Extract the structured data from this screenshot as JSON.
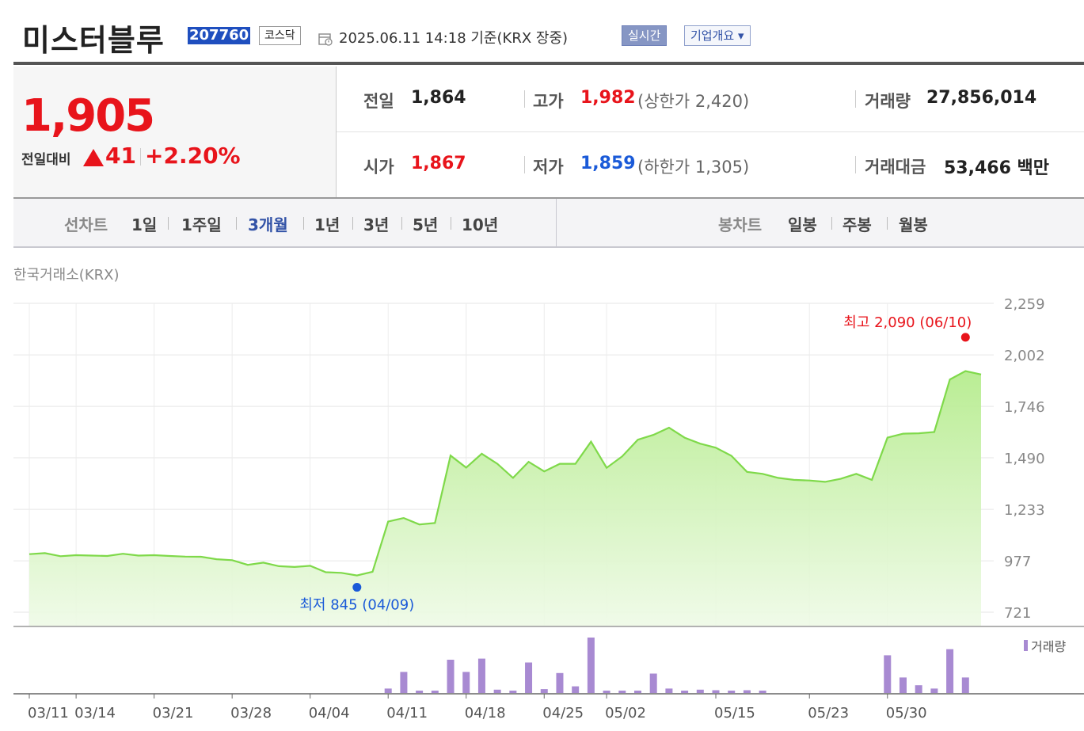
{
  "header": {
    "stock_name": "미스터블루",
    "stock_code": "207760",
    "market": "코스닥",
    "date_text": "2025.06.11 14:18 기준(KRX 장중)",
    "realtime_label": "실시간",
    "overview_label": "기업개요 ▾"
  },
  "quote": {
    "price": "1,905",
    "change_label": "전일대비",
    "change_amount": "41",
    "change_percent": "+2.20%",
    "direction": "up"
  },
  "stats": {
    "prev_close_label": "전일",
    "prev_close": "1,864",
    "high_label": "고가",
    "high": "1,982",
    "upper_limit_text": "(상한가 2,420)",
    "volume_label": "거래량",
    "volume": "27,856,014",
    "open_label": "시가",
    "open": "1,867",
    "low_label": "저가",
    "low": "1,859",
    "lower_limit_text": "(하한가 1,305)",
    "value_label": "거래대금",
    "value": "53,466 백만"
  },
  "period_bar": {
    "line_chart_label": "선차트",
    "line_periods": [
      "1일",
      "1주일",
      "3개월",
      "1년",
      "3년",
      "5년",
      "10년"
    ],
    "selected": "3개월",
    "candle_chart_label": "봉차트",
    "candle_periods": [
      "일봉",
      "주봉",
      "월봉"
    ]
  },
  "exchange_label": "한국거래소(KRX)",
  "colors": {
    "up": "#e8141b",
    "down": "#1a5ad8",
    "line": "#7fd94a",
    "volume": "#a88ad2"
  },
  "chart_data": {
    "type": "area",
    "x": [
      "03/11",
      "03/12",
      "03/13",
      "03/14",
      "03/17",
      "03/18",
      "03/19",
      "03/20",
      "03/21",
      "03/24",
      "03/25",
      "03/26",
      "03/27",
      "03/28",
      "03/31",
      "04/01",
      "04/02",
      "04/03",
      "04/04",
      "04/07",
      "04/08",
      "04/09",
      "04/10",
      "04/11",
      "04/14",
      "04/15",
      "04/16",
      "04/17",
      "04/18",
      "04/21",
      "04/22",
      "04/23",
      "04/24",
      "04/25",
      "04/28",
      "04/29",
      "04/30",
      "05/02",
      "05/07",
      "05/08",
      "05/09",
      "05/12",
      "05/13",
      "05/14",
      "05/15",
      "05/16",
      "05/19",
      "05/20",
      "05/21",
      "05/22",
      "05/23",
      "05/26",
      "05/27",
      "05/28",
      "05/29",
      "05/30",
      "06/02",
      "06/04",
      "06/05",
      "06/09",
      "06/10",
      "06/11"
    ],
    "close": [
      1010,
      1015,
      1000,
      1005,
      1003,
      1001,
      1012,
      1003,
      1005,
      1001,
      998,
      997,
      985,
      980,
      957,
      968,
      950,
      946,
      952,
      920,
      917,
      904,
      922,
      1172,
      1190,
      1158,
      1165,
      1501,
      1441,
      1510,
      1460,
      1390,
      1470,
      1422,
      1460,
      1460,
      1570,
      1440,
      1497,
      1580,
      1604,
      1640,
      1590,
      1560,
      1540,
      1500,
      1420,
      1410,
      1390,
      1380,
      1377,
      1370,
      1385,
      1410,
      1380,
      1590,
      1610,
      1612,
      1618,
      1880,
      1922,
      1905
    ],
    "volume_rel": [
      0,
      0,
      0,
      0,
      0,
      0,
      0,
      0,
      0,
      0,
      0,
      0,
      0,
      0,
      0,
      0,
      0,
      0,
      0,
      0,
      0,
      0,
      0,
      0.08,
      0.38,
      0.04,
      0.04,
      0.6,
      0.38,
      0.62,
      0.06,
      0.04,
      0.55,
      0.07,
      0.36,
      0.12,
      1.0,
      0.03,
      0.03,
      0.02,
      0.35,
      0.08,
      0.03,
      0.06,
      0.05,
      0.03,
      0.05,
      0.02,
      0,
      0,
      0,
      0,
      0,
      0,
      0,
      0.68,
      0.28,
      0.14,
      0.08,
      0.79,
      0.28,
      0
    ],
    "x_ticks": [
      "03/11",
      "03/14",
      "03/21",
      "03/28",
      "04/04",
      "04/11",
      "04/18",
      "04/25",
      "05/02",
      "05/15",
      "05/23",
      "05/30"
    ],
    "y_ticks": [
      "2,259",
      "2,002",
      "1,746",
      "1,490",
      "1,233",
      "977",
      "721"
    ],
    "ylim": [
      721,
      2259
    ],
    "max_annotation": "최고 2,090 (06/10)",
    "max_value": 2090,
    "max_index": 60,
    "min_annotation": "최저 845 (04/09)",
    "min_value": 845,
    "min_index": 21,
    "volume_legend": "거래량",
    "grid": true
  }
}
